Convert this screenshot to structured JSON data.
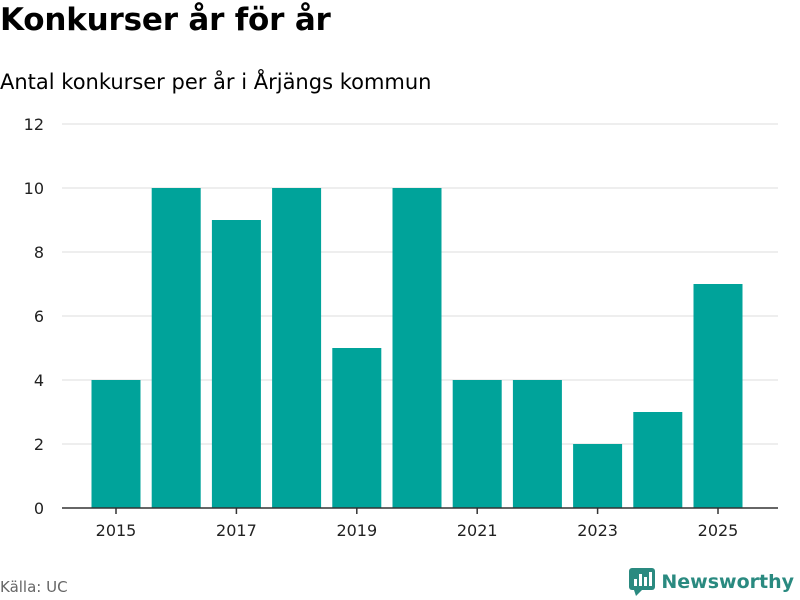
{
  "header": {
    "title": "Konkurser år för år",
    "subtitle": "Antal konkurser per år i Årjängs kommun"
  },
  "footer": {
    "source": "Källa: UC",
    "brand": "Newsworthy"
  },
  "colors": {
    "bar": "#00a39a",
    "grid": "#dddddd",
    "axis": "#333333",
    "brand": "#2a8a80"
  },
  "chart_data": {
    "type": "bar",
    "title": "Konkurser år för år",
    "subtitle": "Antal konkurser per år i Årjängs kommun",
    "xlabel": "",
    "ylabel": "",
    "categories": [
      "2015",
      "2016",
      "2017",
      "2018",
      "2019",
      "2020",
      "2021",
      "2022",
      "2023",
      "2024",
      "2025"
    ],
    "values": [
      4,
      10,
      9,
      10,
      5,
      10,
      4,
      4,
      2,
      3,
      7
    ],
    "x_tick_labels": [
      "2015",
      "2017",
      "2019",
      "2021",
      "2023",
      "2025"
    ],
    "y_ticks": [
      "0",
      "2",
      "4",
      "6",
      "8",
      "10",
      "12"
    ],
    "ylim": [
      0,
      12
    ],
    "grid": true
  }
}
